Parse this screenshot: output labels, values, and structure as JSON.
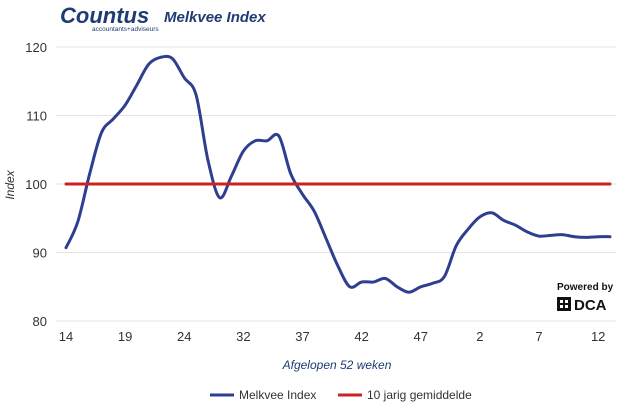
{
  "header": {
    "brand_name": "Countus",
    "brand_tagline": "accountants+adviseurs",
    "title": "Melkvee Index"
  },
  "watermark": {
    "powered_by": "Powered by",
    "brand": "DCA"
  },
  "chart_data": {
    "type": "line",
    "title": "Melkvee Index",
    "xlabel": "Afgelopen 52 weken",
    "ylabel": "Index",
    "ylim": [
      80,
      120
    ],
    "yticks": [
      80,
      90,
      100,
      110,
      120
    ],
    "x_tick_labels": [
      "14",
      "19",
      "24",
      "32",
      "37",
      "42",
      "47",
      "2",
      "7",
      "12"
    ],
    "x_tick_weeks": [
      0,
      5,
      10,
      15,
      20,
      25,
      30,
      35,
      40,
      45
    ],
    "grid": "horizontal",
    "legend_position": "bottom",
    "series": [
      {
        "name": "Melkvee Index",
        "color": "#2e3f8f",
        "x": [
          0,
          1,
          2,
          3,
          4,
          5,
          6,
          7,
          8,
          9,
          10,
          11,
          12,
          13,
          14,
          15,
          16,
          17,
          18,
          19,
          20,
          21,
          22,
          23,
          24,
          25,
          26,
          27,
          28,
          29,
          30,
          31,
          32,
          33,
          34,
          35,
          36,
          37,
          38,
          39,
          40,
          41,
          42,
          43,
          44,
          45,
          46
        ],
        "values": [
          90.7,
          94.5,
          101.5,
          107.5,
          109.5,
          111.5,
          114.5,
          117.5,
          118.5,
          118.3,
          115.5,
          113,
          103.5,
          98,
          101.2,
          104.8,
          106.3,
          106.3,
          107,
          101.5,
          98.5,
          96,
          92,
          88,
          85,
          85.7,
          85.7,
          86.2,
          85,
          84.2,
          85,
          85.5,
          86.5,
          91,
          93.4,
          95.2,
          95.8,
          94.7,
          94,
          93,
          92.4,
          92.5,
          92.6,
          92.3,
          92.2,
          92.3,
          92.3
        ]
      },
      {
        "name": "10 jarig gemiddelde",
        "color": "#cc2222",
        "x": [
          0,
          46
        ],
        "values": [
          100,
          100
        ]
      }
    ]
  }
}
